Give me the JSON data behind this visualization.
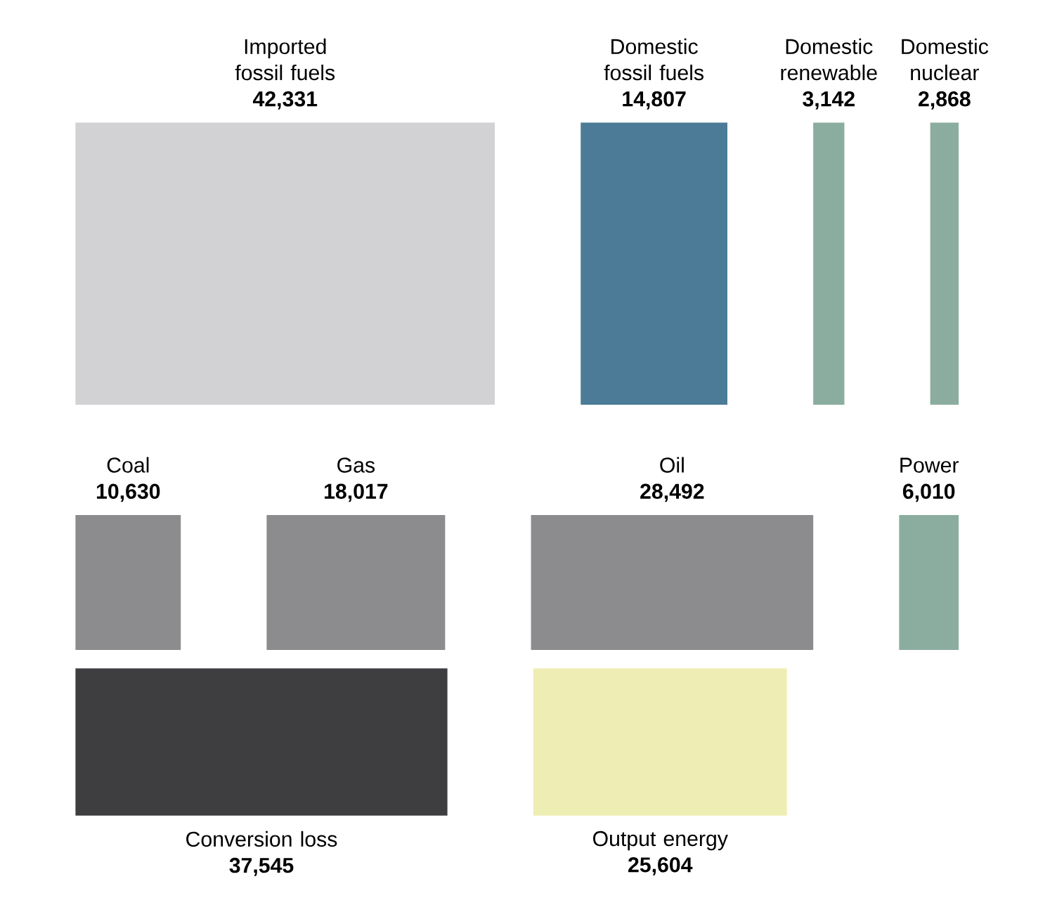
{
  "chart_data": [
    {
      "type": "other",
      "categories": [
        "Imported fossil fuels",
        "Domestic fossil fuels",
        "Domestic renewable",
        "Domestic nuclear"
      ],
      "values": [
        42331,
        14807,
        3142,
        2868
      ],
      "value_labels": [
        "42,331",
        "14,807",
        "3,142",
        "2,868"
      ],
      "colors": [
        "#d2d2d4",
        "#4b7b97",
        "#8aad9f",
        "#8aad9f"
      ]
    },
    {
      "type": "other",
      "categories": [
        "Coal",
        "Gas",
        "Oil",
        "Power"
      ],
      "values": [
        10630,
        18017,
        28492,
        6010
      ],
      "value_labels": [
        "10,630",
        "18,017",
        "28,492",
        "6,010"
      ],
      "colors": [
        "#8c8c8e",
        "#8c8c8e",
        "#8c8c8e",
        "#8aad9f"
      ]
    },
    {
      "type": "other",
      "categories": [
        "Conversion loss",
        "Output energy"
      ],
      "values": [
        37545,
        25604
      ],
      "value_labels": [
        "37,545",
        "25,604"
      ],
      "colors": [
        "#3e3e40",
        "#eeeeb4"
      ]
    }
  ]
}
